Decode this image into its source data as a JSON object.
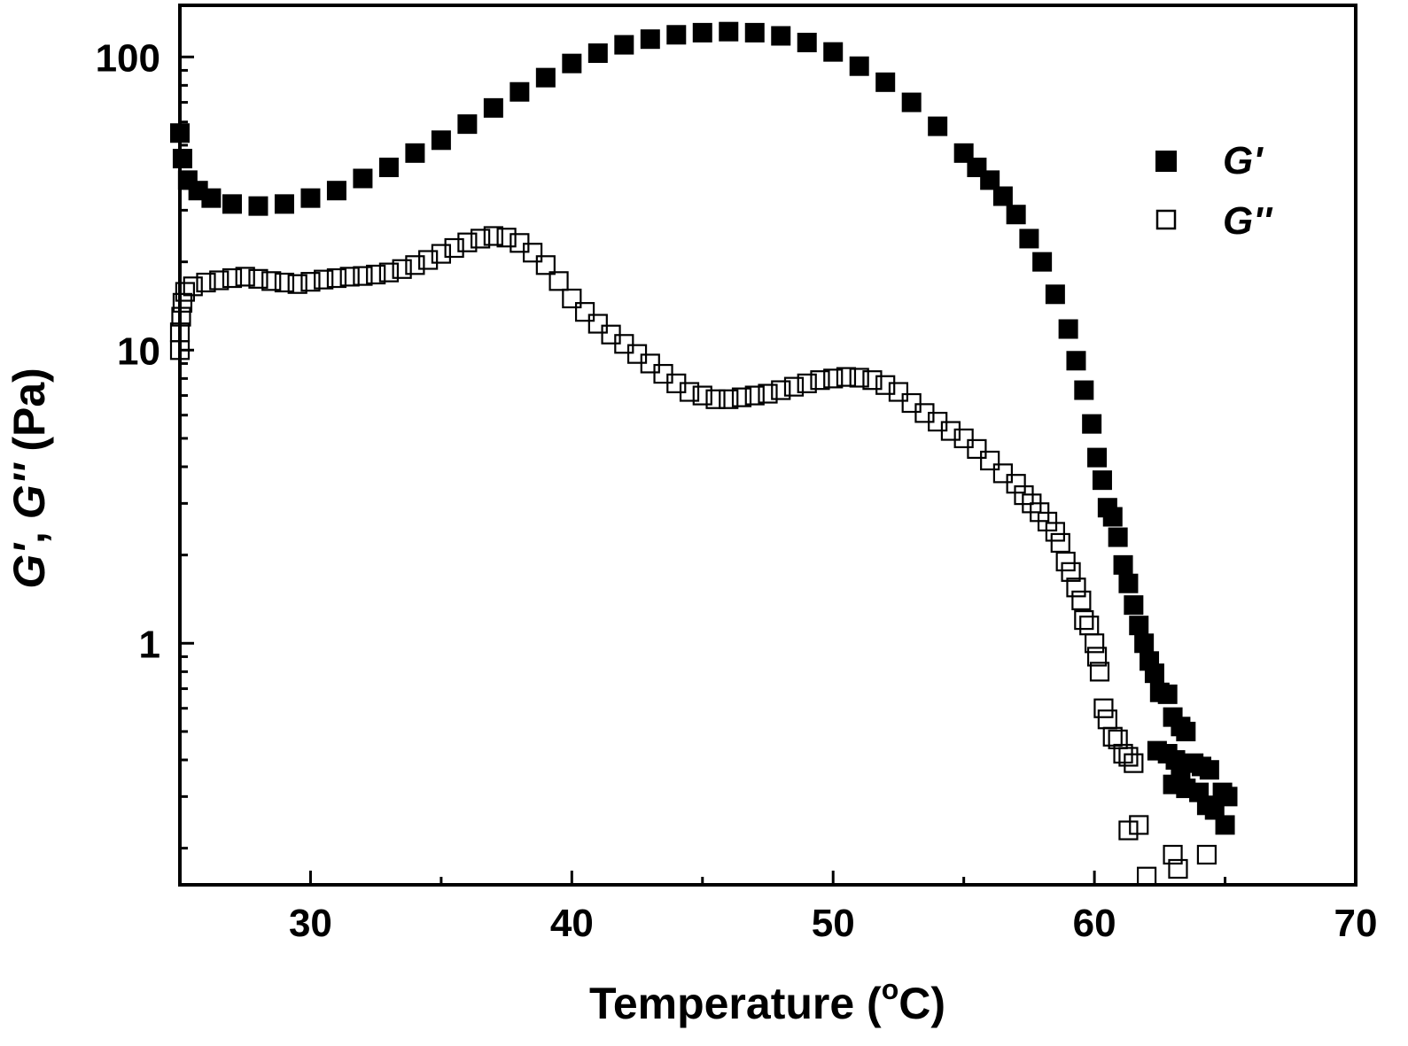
{
  "chart_data": {
    "type": "scatter",
    "x_axis": {
      "label_prefix": "Temperature (",
      "label_sup": "o",
      "label_suffix": "C)",
      "range": [
        25,
        70
      ],
      "ticks": [
        30,
        40,
        50,
        60,
        70
      ],
      "tick_labels": [
        "30",
        "40",
        "50",
        "60",
        "70"
      ]
    },
    "y_axis": {
      "label_g1": "G'",
      "label_sep": ", ",
      "label_g2": "G''",
      "label_unit": " (Pa)",
      "scale": "log",
      "range": [
        0.15,
        150
      ],
      "ticks": [
        1,
        10,
        100
      ],
      "tick_labels": [
        "1",
        "10",
        "100"
      ]
    },
    "legend": {
      "position": "top-right",
      "entries": [
        {
          "label": "G'",
          "marker": "filled-square"
        },
        {
          "label": "G''",
          "marker": "open-square"
        }
      ]
    },
    "series": [
      {
        "name": "G'",
        "marker": "filled-square",
        "color": "#000000",
        "points": [
          [
            25.0,
            55
          ],
          [
            25.1,
            45
          ],
          [
            25.3,
            38
          ],
          [
            25.7,
            35
          ],
          [
            26.2,
            33
          ],
          [
            27.0,
            31.5
          ],
          [
            28.0,
            31
          ],
          [
            29.0,
            31.5
          ],
          [
            30.0,
            33
          ],
          [
            31.0,
            35
          ],
          [
            32.0,
            38.5
          ],
          [
            33.0,
            42
          ],
          [
            34.0,
            47
          ],
          [
            35.0,
            52
          ],
          [
            36.0,
            59
          ],
          [
            37.0,
            67
          ],
          [
            38.0,
            76
          ],
          [
            39.0,
            85
          ],
          [
            40.0,
            95
          ],
          [
            41.0,
            103
          ],
          [
            42.0,
            110
          ],
          [
            43.0,
            115
          ],
          [
            44.0,
            119
          ],
          [
            45.0,
            121
          ],
          [
            46.0,
            122
          ],
          [
            47.0,
            121
          ],
          [
            48.0,
            118
          ],
          [
            49.0,
            112
          ],
          [
            50.0,
            104
          ],
          [
            51.0,
            93
          ],
          [
            52.0,
            82
          ],
          [
            53.0,
            70
          ],
          [
            54.0,
            58
          ],
          [
            55.0,
            47
          ],
          [
            55.5,
            42
          ],
          [
            56.0,
            38
          ],
          [
            56.5,
            33.5
          ],
          [
            57.0,
            29
          ],
          [
            57.5,
            24
          ],
          [
            58.0,
            20
          ],
          [
            58.5,
            15.5
          ],
          [
            59.0,
            11.8
          ],
          [
            59.3,
            9.2
          ],
          [
            59.6,
            7.3
          ],
          [
            59.9,
            5.6
          ],
          [
            60.1,
            4.3
          ],
          [
            60.3,
            3.6
          ],
          [
            60.5,
            2.9
          ],
          [
            60.7,
            2.7
          ],
          [
            60.9,
            2.3
          ],
          [
            61.1,
            1.85
          ],
          [
            61.3,
            1.6
          ],
          [
            61.5,
            1.35
          ],
          [
            61.7,
            1.15
          ],
          [
            61.9,
            1.0
          ],
          [
            62.1,
            0.87
          ],
          [
            62.3,
            0.79
          ],
          [
            62.5,
            0.68
          ],
          [
            62.8,
            0.67
          ],
          [
            63.0,
            0.56
          ],
          [
            63.3,
            0.52
          ],
          [
            63.5,
            0.5
          ],
          [
            62.4,
            0.43
          ],
          [
            62.8,
            0.42
          ],
          [
            63.1,
            0.4
          ],
          [
            63.3,
            0.36
          ],
          [
            63.0,
            0.33
          ],
          [
            63.5,
            0.32
          ],
          [
            63.8,
            0.39
          ],
          [
            64.1,
            0.38
          ],
          [
            64.4,
            0.37
          ],
          [
            64.0,
            0.31
          ],
          [
            64.3,
            0.28
          ],
          [
            64.6,
            0.27
          ],
          [
            64.9,
            0.31
          ],
          [
            65.1,
            0.3
          ],
          [
            65.0,
            0.24
          ]
        ]
      },
      {
        "name": "G''",
        "marker": "open-square",
        "color": "#000000",
        "points": [
          [
            25.0,
            10
          ],
          [
            25.0,
            11.5
          ],
          [
            25.05,
            13
          ],
          [
            25.1,
            14.5
          ],
          [
            25.2,
            15.8
          ],
          [
            25.5,
            16.5
          ],
          [
            26.0,
            17
          ],
          [
            26.5,
            17.3
          ],
          [
            27.0,
            17.6
          ],
          [
            27.5,
            17.8
          ],
          [
            28.0,
            17.5
          ],
          [
            28.5,
            17.2
          ],
          [
            29.0,
            17
          ],
          [
            29.5,
            16.8
          ],
          [
            30.0,
            17.1
          ],
          [
            30.5,
            17.4
          ],
          [
            31.0,
            17.6
          ],
          [
            31.5,
            17.8
          ],
          [
            32.0,
            17.9
          ],
          [
            32.5,
            18.1
          ],
          [
            33.0,
            18.4
          ],
          [
            33.5,
            18.9
          ],
          [
            34.0,
            19.5
          ],
          [
            34.5,
            20.3
          ],
          [
            35.0,
            21.3
          ],
          [
            35.5,
            22.3
          ],
          [
            36.0,
            23.3
          ],
          [
            36.5,
            24
          ],
          [
            37.0,
            24.5
          ],
          [
            37.5,
            24.2
          ],
          [
            38.0,
            23.2
          ],
          [
            38.5,
            21.5
          ],
          [
            39.0,
            19.5
          ],
          [
            39.5,
            17.2
          ],
          [
            40.0,
            15
          ],
          [
            40.5,
            13.5
          ],
          [
            41.0,
            12.3
          ],
          [
            41.5,
            11.3
          ],
          [
            42.0,
            10.5
          ],
          [
            42.5,
            9.7
          ],
          [
            43.0,
            9
          ],
          [
            43.5,
            8.3
          ],
          [
            44.0,
            7.7
          ],
          [
            44.5,
            7.2
          ],
          [
            45.0,
            7
          ],
          [
            45.5,
            6.8
          ],
          [
            46.0,
            6.8
          ],
          [
            46.5,
            6.9
          ],
          [
            47.0,
            7
          ],
          [
            47.5,
            7.1
          ],
          [
            48.0,
            7.3
          ],
          [
            48.5,
            7.5
          ],
          [
            49.0,
            7.7
          ],
          [
            49.5,
            7.9
          ],
          [
            50.0,
            8
          ],
          [
            50.5,
            8.1
          ],
          [
            51.0,
            8.05
          ],
          [
            51.5,
            7.9
          ],
          [
            52.0,
            7.6
          ],
          [
            52.5,
            7.2
          ],
          [
            53.0,
            6.6
          ],
          [
            53.5,
            6.1
          ],
          [
            54.0,
            5.7
          ],
          [
            54.5,
            5.3
          ],
          [
            55.0,
            5
          ],
          [
            55.5,
            4.6
          ],
          [
            56.0,
            4.2
          ],
          [
            56.5,
            3.8
          ],
          [
            57.0,
            3.5
          ],
          [
            57.3,
            3.2
          ],
          [
            57.6,
            3.0
          ],
          [
            57.9,
            2.8
          ],
          [
            58.2,
            2.6
          ],
          [
            58.5,
            2.4
          ],
          [
            58.7,
            2.2
          ],
          [
            58.9,
            1.9
          ],
          [
            59.1,
            1.75
          ],
          [
            59.3,
            1.55
          ],
          [
            59.5,
            1.4
          ],
          [
            59.6,
            1.2
          ],
          [
            59.8,
            1.15
          ],
          [
            60.0,
            1.0
          ],
          [
            60.1,
            0.9
          ],
          [
            60.2,
            0.8
          ],
          [
            60.35,
            0.6
          ],
          [
            60.5,
            0.55
          ],
          [
            60.7,
            0.48
          ],
          [
            60.9,
            0.47
          ],
          [
            61.1,
            0.42
          ],
          [
            61.3,
            0.41
          ],
          [
            61.5,
            0.39
          ],
          [
            61.3,
            0.23
          ],
          [
            61.7,
            0.24
          ],
          [
            62.0,
            0.16
          ],
          [
            63.0,
            0.19
          ],
          [
            63.2,
            0.17
          ],
          [
            64.3,
            0.19
          ]
        ]
      }
    ]
  }
}
